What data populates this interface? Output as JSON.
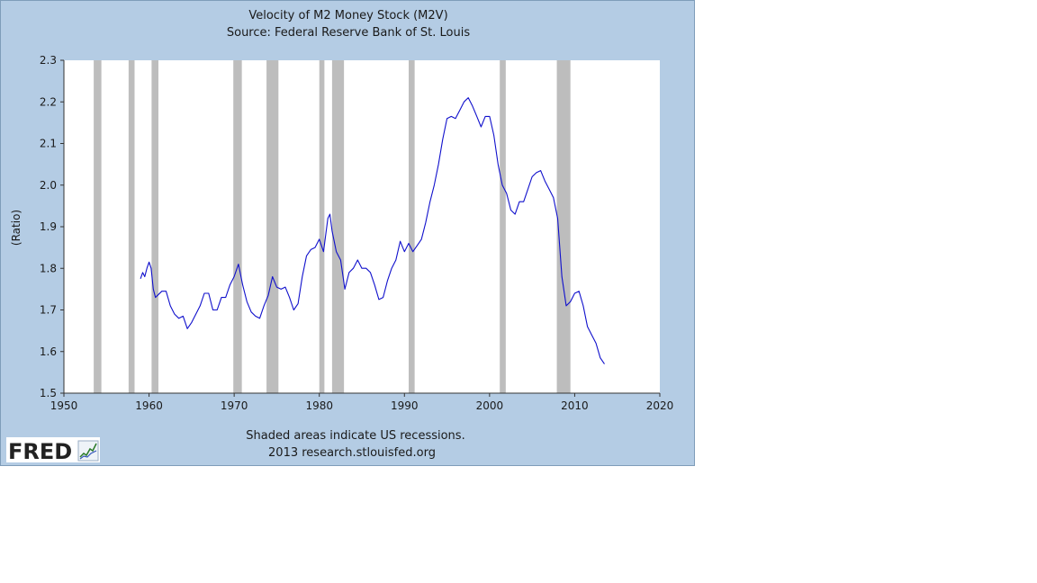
{
  "colors": {
    "panel": "#b4cce4",
    "plot": "#ffffff",
    "line": "#1010cc",
    "recession": "#bdbdbd",
    "axis": "#333333",
    "grid": "#dddddd"
  },
  "chart_data": {
    "type": "line",
    "title": "Velocity of M2 Money Stock (M2V)",
    "subtitle": "Source: Federal Reserve Bank of St. Louis",
    "xlabel": "",
    "ylabel": "(Ratio)",
    "xlim": [
      1950,
      2020
    ],
    "ylim": [
      1.5,
      2.3
    ],
    "xticks": [
      1950,
      1960,
      1970,
      1980,
      1990,
      2000,
      2010,
      2020
    ],
    "yticks": [
      1.5,
      1.6,
      1.7,
      1.8,
      1.9,
      2.0,
      2.1,
      2.2,
      2.3
    ],
    "grid": false,
    "recessions": [
      [
        1953.5,
        1954.4
      ],
      [
        1957.6,
        1958.3
      ],
      [
        1960.3,
        1961.1
      ],
      [
        1969.9,
        1970.9
      ],
      [
        1973.8,
        1975.2
      ],
      [
        1980.0,
        1980.6
      ],
      [
        1981.5,
        1982.9
      ],
      [
        1990.5,
        1991.2
      ],
      [
        2001.2,
        2001.9
      ],
      [
        2007.9,
        2009.5
      ]
    ],
    "series": [
      {
        "x": [
          1959.0,
          1959.25,
          1959.5,
          1959.75,
          1960.0,
          1960.25,
          1960.5,
          1960.75,
          1961.0,
          1961.5,
          1962.0,
          1962.5,
          1963.0,
          1963.5,
          1964.0,
          1964.5,
          1965.0,
          1965.5,
          1966.0,
          1966.5,
          1967.0,
          1967.5,
          1968.0,
          1968.5,
          1969.0,
          1969.5,
          1970.0,
          1970.5,
          1971.0,
          1971.5,
          1972.0,
          1972.5,
          1973.0,
          1973.5,
          1974.0,
          1974.5,
          1975.0,
          1975.5,
          1976.0,
          1976.5,
          1977.0,
          1977.5,
          1978.0,
          1978.5,
          1979.0,
          1979.5,
          1980.0,
          1980.5,
          1981.0,
          1981.25,
          1981.5,
          1982.0,
          1982.5,
          1983.0,
          1983.5,
          1984.0,
          1984.5,
          1985.0,
          1985.5,
          1986.0,
          1986.5,
          1987.0,
          1987.5,
          1988.0,
          1988.5,
          1989.0,
          1989.5,
          1990.0,
          1990.5,
          1991.0,
          1991.5,
          1992.0,
          1992.5,
          1993.0,
          1993.5,
          1994.0,
          1994.5,
          1995.0,
          1995.5,
          1996.0,
          1996.5,
          1997.0,
          1997.5,
          1998.0,
          1998.5,
          1999.0,
          1999.5,
          2000.0,
          2000.5,
          2001.0,
          2001.5,
          2002.0,
          2002.5,
          2003.0,
          2003.5,
          2004.0,
          2004.5,
          2005.0,
          2005.5,
          2006.0,
          2006.5,
          2007.0,
          2007.5,
          2008.0,
          2008.5,
          2009.0,
          2009.5,
          2010.0,
          2010.5,
          2011.0,
          2011.5,
          2012.0,
          2012.5,
          2013.0,
          2013.5
        ],
        "values": [
          1.775,
          1.79,
          1.78,
          1.8,
          1.815,
          1.8,
          1.75,
          1.73,
          1.735,
          1.745,
          1.745,
          1.71,
          1.69,
          1.68,
          1.685,
          1.655,
          1.67,
          1.69,
          1.71,
          1.74,
          1.74,
          1.7,
          1.7,
          1.73,
          1.73,
          1.76,
          1.78,
          1.81,
          1.76,
          1.72,
          1.695,
          1.685,
          1.68,
          1.71,
          1.735,
          1.78,
          1.755,
          1.75,
          1.755,
          1.73,
          1.7,
          1.715,
          1.78,
          1.83,
          1.845,
          1.85,
          1.87,
          1.84,
          1.92,
          1.93,
          1.89,
          1.84,
          1.82,
          1.75,
          1.79,
          1.8,
          1.82,
          1.8,
          1.8,
          1.79,
          1.76,
          1.725,
          1.73,
          1.77,
          1.8,
          1.82,
          1.865,
          1.84,
          1.86,
          1.84,
          1.855,
          1.87,
          1.91,
          1.96,
          2.0,
          2.05,
          2.11,
          2.16,
          2.165,
          2.16,
          2.18,
          2.2,
          2.21,
          2.19,
          2.165,
          2.14,
          2.165,
          2.165,
          2.12,
          2.05,
          2.0,
          1.98,
          1.94,
          1.93,
          1.96,
          1.96,
          1.99,
          2.02,
          2.03,
          2.035,
          2.01,
          1.99,
          1.97,
          1.92,
          1.78,
          1.71,
          1.72,
          1.74,
          1.745,
          1.71,
          1.66,
          1.64,
          1.62,
          1.585,
          1.57
        ]
      }
    ]
  },
  "footer": {
    "note": "Shaded areas indicate US recessions.",
    "credit": "2013 research.stlouisfed.org"
  },
  "logo": {
    "text": "FRED",
    "icon": "mini-chart-icon"
  }
}
